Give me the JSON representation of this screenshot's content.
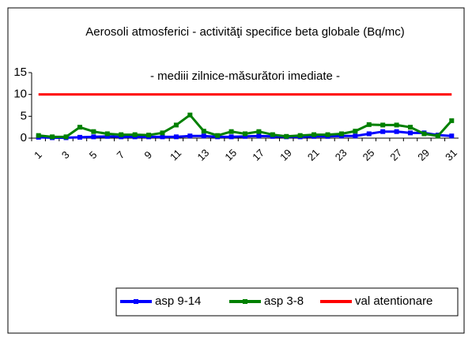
{
  "chart_data": {
    "type": "line",
    "title": "Aerosoli atmosferici  - activităţi specifice beta globale (Bq/mc)",
    "subtitle": "- mediii zilnice-măsurători imediate -",
    "categories": [
      "1",
      null,
      "3",
      null,
      "5",
      null,
      "7",
      null,
      "9",
      null,
      "11",
      null,
      "13",
      null,
      "15",
      null,
      "17",
      null,
      "19",
      null,
      "21",
      null,
      "23",
      null,
      "25",
      null,
      "27",
      null,
      "29",
      null,
      "31"
    ],
    "series": [
      {
        "name": "asp 9-14",
        "color": "#0000ff",
        "marker": true,
        "values": [
          0.2,
          0.1,
          0.1,
          0.2,
          0.3,
          0.4,
          0.3,
          0.3,
          0.3,
          0.3,
          0.3,
          0.5,
          0.5,
          0.3,
          0.3,
          0.4,
          0.5,
          0.4,
          0.3,
          0.3,
          0.4,
          0.4,
          0.5,
          0.5,
          1.0,
          1.5,
          1.5,
          1.2,
          1.2,
          0.7,
          0.5
        ]
      },
      {
        "name": "asp 3-8",
        "color": "#008000",
        "marker": true,
        "values": [
          0.6,
          0.3,
          0.3,
          2.5,
          1.5,
          1.0,
          0.8,
          0.8,
          0.7,
          1.2,
          3.0,
          5.3,
          1.6,
          0.6,
          1.5,
          1.0,
          1.5,
          0.8,
          0.4,
          0.6,
          0.8,
          0.8,
          1.0,
          1.6,
          3.1,
          3.0,
          3.0,
          2.5,
          1.0,
          0.5,
          4.0
        ]
      },
      {
        "name": "val atentionare",
        "color": "#ff0000",
        "marker": false,
        "values": [
          10,
          10,
          10,
          10,
          10,
          10,
          10,
          10,
          10,
          10,
          10,
          10,
          10,
          10,
          10,
          10,
          10,
          10,
          10,
          10,
          10,
          10,
          10,
          10,
          10,
          10,
          10,
          10,
          10,
          10,
          10
        ]
      }
    ],
    "ylim": [
      0,
      15
    ],
    "yticks": [
      0,
      5,
      10,
      15
    ],
    "legend": "bottom"
  }
}
